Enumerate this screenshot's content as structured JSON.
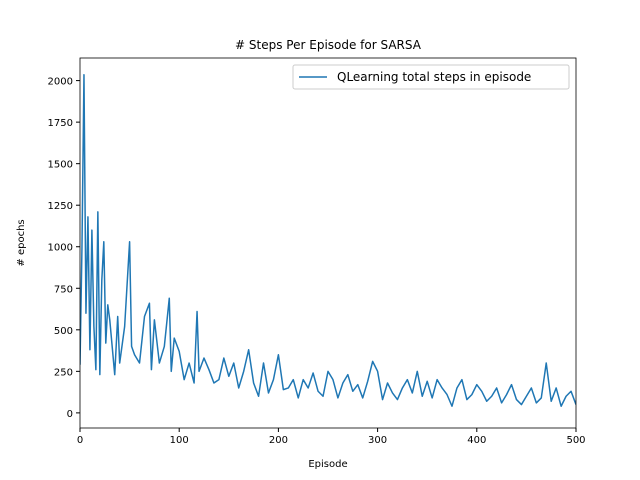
{
  "chart_data": {
    "type": "line",
    "title": "# Steps Per Episode for SARSA",
    "x_label": "Episode",
    "y_label": "# epochs",
    "xlim": [
      0,
      500
    ],
    "xticks": [
      0,
      100,
      200,
      300,
      400,
      500
    ],
    "ylim": [
      -91,
      2136
    ],
    "yticks": [
      0,
      250,
      500,
      750,
      1000,
      1250,
      1500,
      1750,
      2000
    ],
    "legend": "upper right",
    "x": [
      0,
      2,
      4,
      6,
      8,
      10,
      12,
      14,
      16,
      18,
      20,
      22,
      24,
      26,
      28,
      30,
      35,
      38,
      40,
      45,
      50,
      52,
      55,
      60,
      65,
      70,
      72,
      75,
      80,
      85,
      90,
      92,
      95,
      100,
      105,
      110,
      115,
      118,
      120,
      125,
      130,
      135,
      140,
      145,
      150,
      155,
      160,
      165,
      170,
      175,
      180,
      185,
      190,
      195,
      200,
      205,
      210,
      215,
      220,
      225,
      230,
      235,
      240,
      245,
      250,
      255,
      260,
      265,
      270,
      275,
      280,
      285,
      290,
      295,
      300,
      305,
      310,
      315,
      320,
      325,
      330,
      335,
      340,
      345,
      350,
      355,
      360,
      365,
      370,
      375,
      380,
      385,
      390,
      395,
      400,
      405,
      410,
      415,
      420,
      425,
      430,
      435,
      440,
      445,
      450,
      455,
      460,
      465,
      470,
      475,
      480,
      485,
      490,
      495,
      500
    ],
    "series": [
      {
        "name": "QLearning total steps in episode",
        "color": "#1f77b4",
        "values": [
          290,
          1000,
          2035,
          600,
          1180,
          380,
          1100,
          520,
          260,
          1210,
          230,
          800,
          1030,
          420,
          650,
          560,
          230,
          580,
          300,
          520,
          1030,
          400,
          350,
          300,
          580,
          660,
          260,
          560,
          300,
          400,
          690,
          250,
          450,
          370,
          200,
          300,
          180,
          610,
          250,
          330,
          260,
          180,
          200,
          330,
          220,
          300,
          150,
          250,
          380,
          180,
          100,
          300,
          120,
          200,
          350,
          140,
          150,
          200,
          90,
          200,
          150,
          240,
          130,
          100,
          250,
          200,
          90,
          180,
          230,
          130,
          170,
          90,
          190,
          310,
          250,
          80,
          180,
          120,
          80,
          150,
          200,
          120,
          250,
          100,
          190,
          90,
          200,
          150,
          110,
          40,
          150,
          200,
          80,
          110,
          170,
          130,
          70,
          100,
          150,
          60,
          110,
          170,
          80,
          50,
          100,
          150,
          60,
          90,
          300,
          70,
          150,
          40,
          100,
          130,
          50
        ]
      }
    ]
  }
}
